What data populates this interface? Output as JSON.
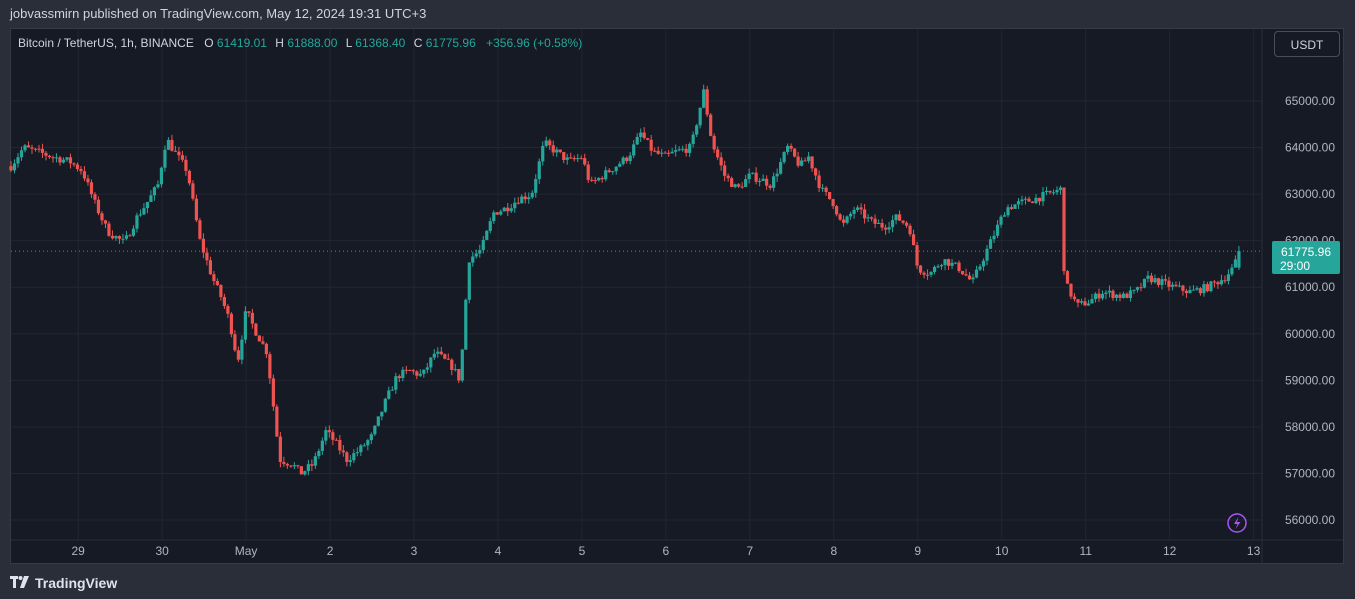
{
  "publish": {
    "text": "jobvassmirn published on TradingView.com, May 12, 2024 19:31 UTC+3"
  },
  "legend": {
    "symbol": "Bitcoin / TetherUS, 1h, BINANCE",
    "o_label": "O",
    "o_value": "61419.01",
    "h_label": "H",
    "h_value": "61888.00",
    "l_label": "L",
    "l_value": "61368.40",
    "c_label": "C",
    "c_value": "61775.96",
    "change": "+356.96 (+0.58%)"
  },
  "currency_button": "USDT",
  "price_tag": {
    "price": "61775.96",
    "countdown": "29:00"
  },
  "footer": {
    "brand": "TradingView"
  },
  "colors": {
    "up": "#26a69a",
    "down": "#ef5350",
    "background": "#161a25",
    "grid": "#232632",
    "accent_alert": "#a855f7"
  },
  "icons": {
    "logo": "tradingview-logo-icon",
    "alert": "lightning-icon"
  },
  "chart_data": {
    "type": "candlestick",
    "interval": "1h",
    "ylim": [
      55700,
      65500
    ],
    "y_ticks": [
      56000,
      57000,
      58000,
      59000,
      60000,
      61000,
      62000,
      63000,
      64000,
      65000
    ],
    "y_tick_labels": [
      "56000.00",
      "57000.00",
      "58000.00",
      "59000.00",
      "60000.00",
      "61000.00",
      "62000.00",
      "63000.00",
      "64000.00",
      "65000.00"
    ],
    "x_ticks": [
      {
        "label": "29",
        "day": 0
      },
      {
        "label": "30",
        "day": 1
      },
      {
        "label": "May",
        "day": 2
      },
      {
        "label": "2",
        "day": 3
      },
      {
        "label": "3",
        "day": 4
      },
      {
        "label": "4",
        "day": 5
      },
      {
        "label": "5",
        "day": 6
      },
      {
        "label": "6",
        "day": 7
      },
      {
        "label": "7",
        "day": 8
      },
      {
        "label": "8",
        "day": 9
      },
      {
        "label": "9",
        "day": 10
      },
      {
        "label": "10",
        "day": 11
      },
      {
        "label": "11",
        "day": 12
      },
      {
        "label": "12",
        "day": 13
      },
      {
        "label": "13",
        "day": 14
      }
    ],
    "x_range_days": [
      -0.8,
      14.1
    ],
    "last_price": 61775.96,
    "anchors": [
      [
        -0.8,
        63600
      ],
      [
        -0.65,
        64000
      ],
      [
        -0.3,
        63800
      ],
      [
        -0.1,
        63700
      ],
      [
        0.05,
        63500
      ],
      [
        0.2,
        62800
      ],
      [
        0.35,
        62200
      ],
      [
        0.55,
        61950
      ],
      [
        0.7,
        62500
      ],
      [
        0.85,
        62900
      ],
      [
        0.95,
        63200
      ],
      [
        1.05,
        64200
      ],
      [
        1.15,
        63900
      ],
      [
        1.3,
        63500
      ],
      [
        1.45,
        62000
      ],
      [
        1.6,
        61200
      ],
      [
        1.7,
        60800
      ],
      [
        1.8,
        60300
      ],
      [
        1.9,
        59400
      ],
      [
        2.0,
        60500
      ],
      [
        2.1,
        60100
      ],
      [
        2.25,
        59600
      ],
      [
        2.4,
        57300
      ],
      [
        2.55,
        57200
      ],
      [
        2.65,
        57000
      ],
      [
        2.8,
        57200
      ],
      [
        2.95,
        57900
      ],
      [
        3.05,
        57700
      ],
      [
        3.2,
        57300
      ],
      [
        3.35,
        57500
      ],
      [
        3.5,
        57800
      ],
      [
        3.65,
        58500
      ],
      [
        3.8,
        59100
      ],
      [
        3.95,
        59200
      ],
      [
        4.1,
        59100
      ],
      [
        4.25,
        59600
      ],
      [
        4.45,
        59300
      ],
      [
        4.55,
        59000
      ],
      [
        4.65,
        61600
      ],
      [
        4.8,
        61800
      ],
      [
        4.95,
        62600
      ],
      [
        5.1,
        62700
      ],
      [
        5.25,
        62900
      ],
      [
        5.4,
        63000
      ],
      [
        5.55,
        64100
      ],
      [
        5.7,
        63900
      ],
      [
        5.85,
        63700
      ],
      [
        6.0,
        63800
      ],
      [
        6.1,
        63200
      ],
      [
        6.25,
        63400
      ],
      [
        6.4,
        63600
      ],
      [
        6.55,
        63800
      ],
      [
        6.7,
        64300
      ],
      [
        6.85,
        63900
      ],
      [
        7.0,
        63800
      ],
      [
        7.1,
        63900
      ],
      [
        7.3,
        64000
      ],
      [
        7.45,
        65200
      ],
      [
        7.55,
        64100
      ],
      [
        7.7,
        63400
      ],
      [
        7.85,
        63100
      ],
      [
        8.0,
        63400
      ],
      [
        8.15,
        63300
      ],
      [
        8.25,
        63200
      ],
      [
        8.45,
        64000
      ],
      [
        8.6,
        63600
      ],
      [
        8.7,
        63800
      ],
      [
        8.85,
        63100
      ],
      [
        9.0,
        62800
      ],
      [
        9.1,
        62300
      ],
      [
        9.25,
        62700
      ],
      [
        9.45,
        62400
      ],
      [
        9.6,
        62300
      ],
      [
        9.75,
        62500
      ],
      [
        9.9,
        62300
      ],
      [
        10.0,
        61400
      ],
      [
        10.15,
        61300
      ],
      [
        10.3,
        61600
      ],
      [
        10.5,
        61400
      ],
      [
        10.65,
        61100
      ],
      [
        10.75,
        61500
      ],
      [
        10.9,
        62100
      ],
      [
        11.05,
        62700
      ],
      [
        11.2,
        62800
      ],
      [
        11.4,
        62900
      ],
      [
        11.55,
        63000
      ],
      [
        11.7,
        63100
      ],
      [
        11.75,
        61100
      ],
      [
        11.9,
        60600
      ],
      [
        12.05,
        60700
      ],
      [
        12.2,
        60900
      ],
      [
        12.45,
        60800
      ],
      [
        12.6,
        60900
      ],
      [
        12.75,
        61200
      ],
      [
        12.9,
        61100
      ],
      [
        13.05,
        61000
      ],
      [
        13.25,
        60900
      ],
      [
        13.45,
        61000
      ],
      [
        13.65,
        61200
      ],
      [
        13.75,
        61400
      ],
      [
        13.85,
        61776
      ]
    ]
  }
}
